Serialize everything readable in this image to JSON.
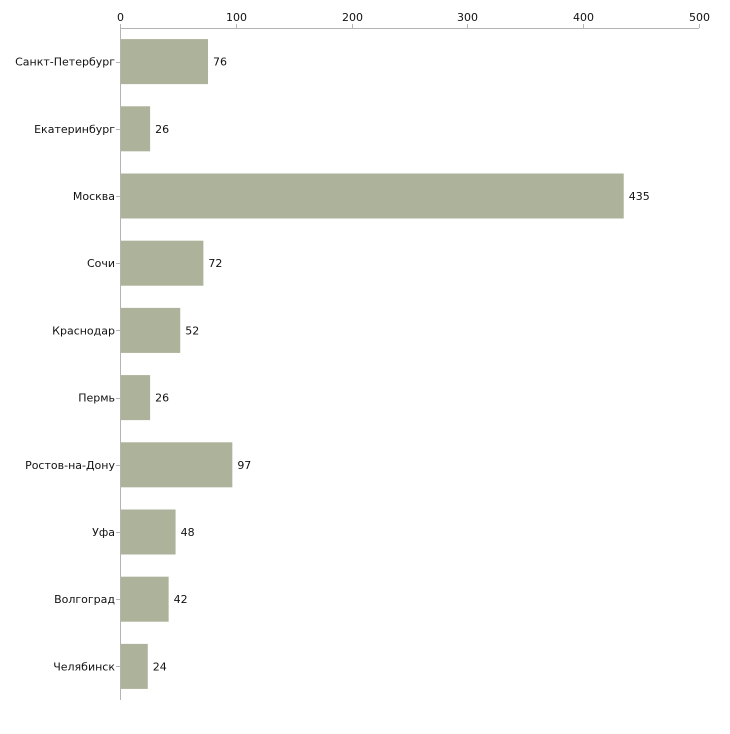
{
  "chart_data": {
    "type": "bar",
    "orientation": "horizontal",
    "title": "",
    "xlabel": "",
    "ylabel": "",
    "xlim": [
      0,
      500
    ],
    "ticks": [
      0,
      100,
      200,
      300,
      400,
      500
    ],
    "tick_labels": [
      "0",
      "100",
      "200",
      "300",
      "400",
      "500"
    ],
    "categories": [
      "Санкт-Петербург",
      "Екатеринбург",
      "Москва",
      "Сочи",
      "Краснодар",
      "Пермь",
      "Ростов-на-Дону",
      "Уфа",
      "Волгоград",
      "Челябинск"
    ],
    "values": [
      76,
      26,
      435,
      72,
      52,
      26,
      97,
      48,
      42,
      24
    ],
    "value_labels": [
      "76",
      "26",
      "435",
      "72",
      "52",
      "26",
      "97",
      "48",
      "42",
      "24"
    ],
    "grid": false,
    "legend": "none",
    "colors": {
      "bar": "#adb39a",
      "axis": "#b4b4b4",
      "text": "#111111"
    }
  }
}
